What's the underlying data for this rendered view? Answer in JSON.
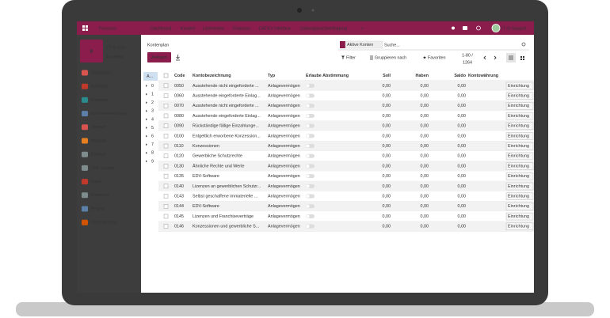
{
  "navbar": {
    "app": "Finanzen",
    "menu": [
      "Dashboard",
      "Kunden",
      "Lieferanten",
      "Finanzen",
      "DATEV Interface",
      "Zahlungsnachverfolgung",
      "+"
    ],
    "user": "IT IS Support"
  },
  "sidebar": {
    "brand_initial": "B",
    "brand_name": [
      "IT IS easy",
      "business"
    ],
    "menu": [
      "Diskussion",
      "Kalender",
      "Kontakte",
      "Kundenverwaltung",
      "Verkauf",
      "Website",
      "Einkauf",
      "Link Tracker",
      "Lager",
      "Finanzen",
      "Projekt",
      "Zeiterfassung"
    ]
  },
  "content": {
    "title": "Kontenplan",
    "create_button": "Anlegen",
    "search": {
      "facet": "Aktive Konten",
      "placeholder": "Suche..."
    },
    "filter": "Filter",
    "group_by": "Gruppieren nach",
    "favorites": "Favoriten",
    "pager": [
      "1-80 /",
      "1264"
    ]
  },
  "table": {
    "group_header": "A...",
    "groups": [
      0,
      1,
      2,
      3,
      4,
      5,
      6,
      7,
      8,
      9
    ],
    "columns": [
      "Code",
      "Kontobezeichnung",
      "Typ",
      "Erlaube Abstimmung",
      "Soll",
      "Haben",
      "Saldo",
      "Kontowährung"
    ],
    "rows": [
      [
        "0050",
        "Ausstehende nicht eingeforderte ...",
        "Anlagevermögen",
        "0,00",
        "0,00",
        "0,00",
        "Einrichtung"
      ],
      [
        "0060",
        "Ausstehende eingeforderte Einlag...",
        "Anlagevermögen",
        "0,00",
        "0,00",
        "0,00",
        "Einrichtung"
      ],
      [
        "0070",
        "Ausstehende nicht eingeforderte ...",
        "Anlagevermögen",
        "0,00",
        "0,00",
        "0,00",
        "Einrichtung"
      ],
      [
        "0080",
        "Ausstehende eingeforderte Einlag...",
        "Anlagevermögen",
        "0,00",
        "0,00",
        "0,00",
        "Einrichtung"
      ],
      [
        "0090",
        "Rückständige fällige Einzahlunge...",
        "Anlagevermögen",
        "0,00",
        "0,00",
        "0,00",
        "Einrichtung"
      ],
      [
        "0100",
        "Entgeltlich erworbene Konzession...",
        "Anlagevermögen",
        "0,00",
        "0,00",
        "0,00",
        "Einrichtung"
      ],
      [
        "0110",
        "Konzessionen",
        "Anlagevermögen",
        "0,00",
        "0,00",
        "0,00",
        "Einrichtung"
      ],
      [
        "0120",
        "Gewerbliche Schutzrechte",
        "Anlagevermögen",
        "0,00",
        "0,00",
        "0,00",
        "Einrichtung"
      ],
      [
        "0130",
        "Ähnliche Rechte und Werte",
        "Anlagevermögen",
        "0,00",
        "0,00",
        "0,00",
        "Einrichtung"
      ],
      [
        "0135",
        "EDV-Software",
        "Anlagevermögen",
        "0,00",
        "0,00",
        "0,00",
        "Einrichtung"
      ],
      [
        "0140",
        "Lizenzen an gewerblichen Schutzr...",
        "Anlagevermögen",
        "0,00",
        "0,00",
        "0,00",
        "Einrichtung"
      ],
      [
        "0143",
        "Selbst geschaffene immaterielle ...",
        "Anlagevermögen",
        "0,00",
        "0,00",
        "0,00",
        "Einrichtung"
      ],
      [
        "0144",
        "EDV-Software",
        "Anlagevermögen",
        "0,00",
        "0,00",
        "0,00",
        "Einrichtung"
      ],
      [
        "0145",
        "Lizenzen und Franchiseverträge",
        "Anlagevermögen",
        "0,00",
        "0,00",
        "0,00",
        "Einrichtung"
      ],
      [
        "0146",
        "Konzessionen und gewerbliche S...",
        "Anlagevermögen",
        "0,00",
        "0,00",
        "0,00",
        "Einrichtung"
      ]
    ]
  }
}
